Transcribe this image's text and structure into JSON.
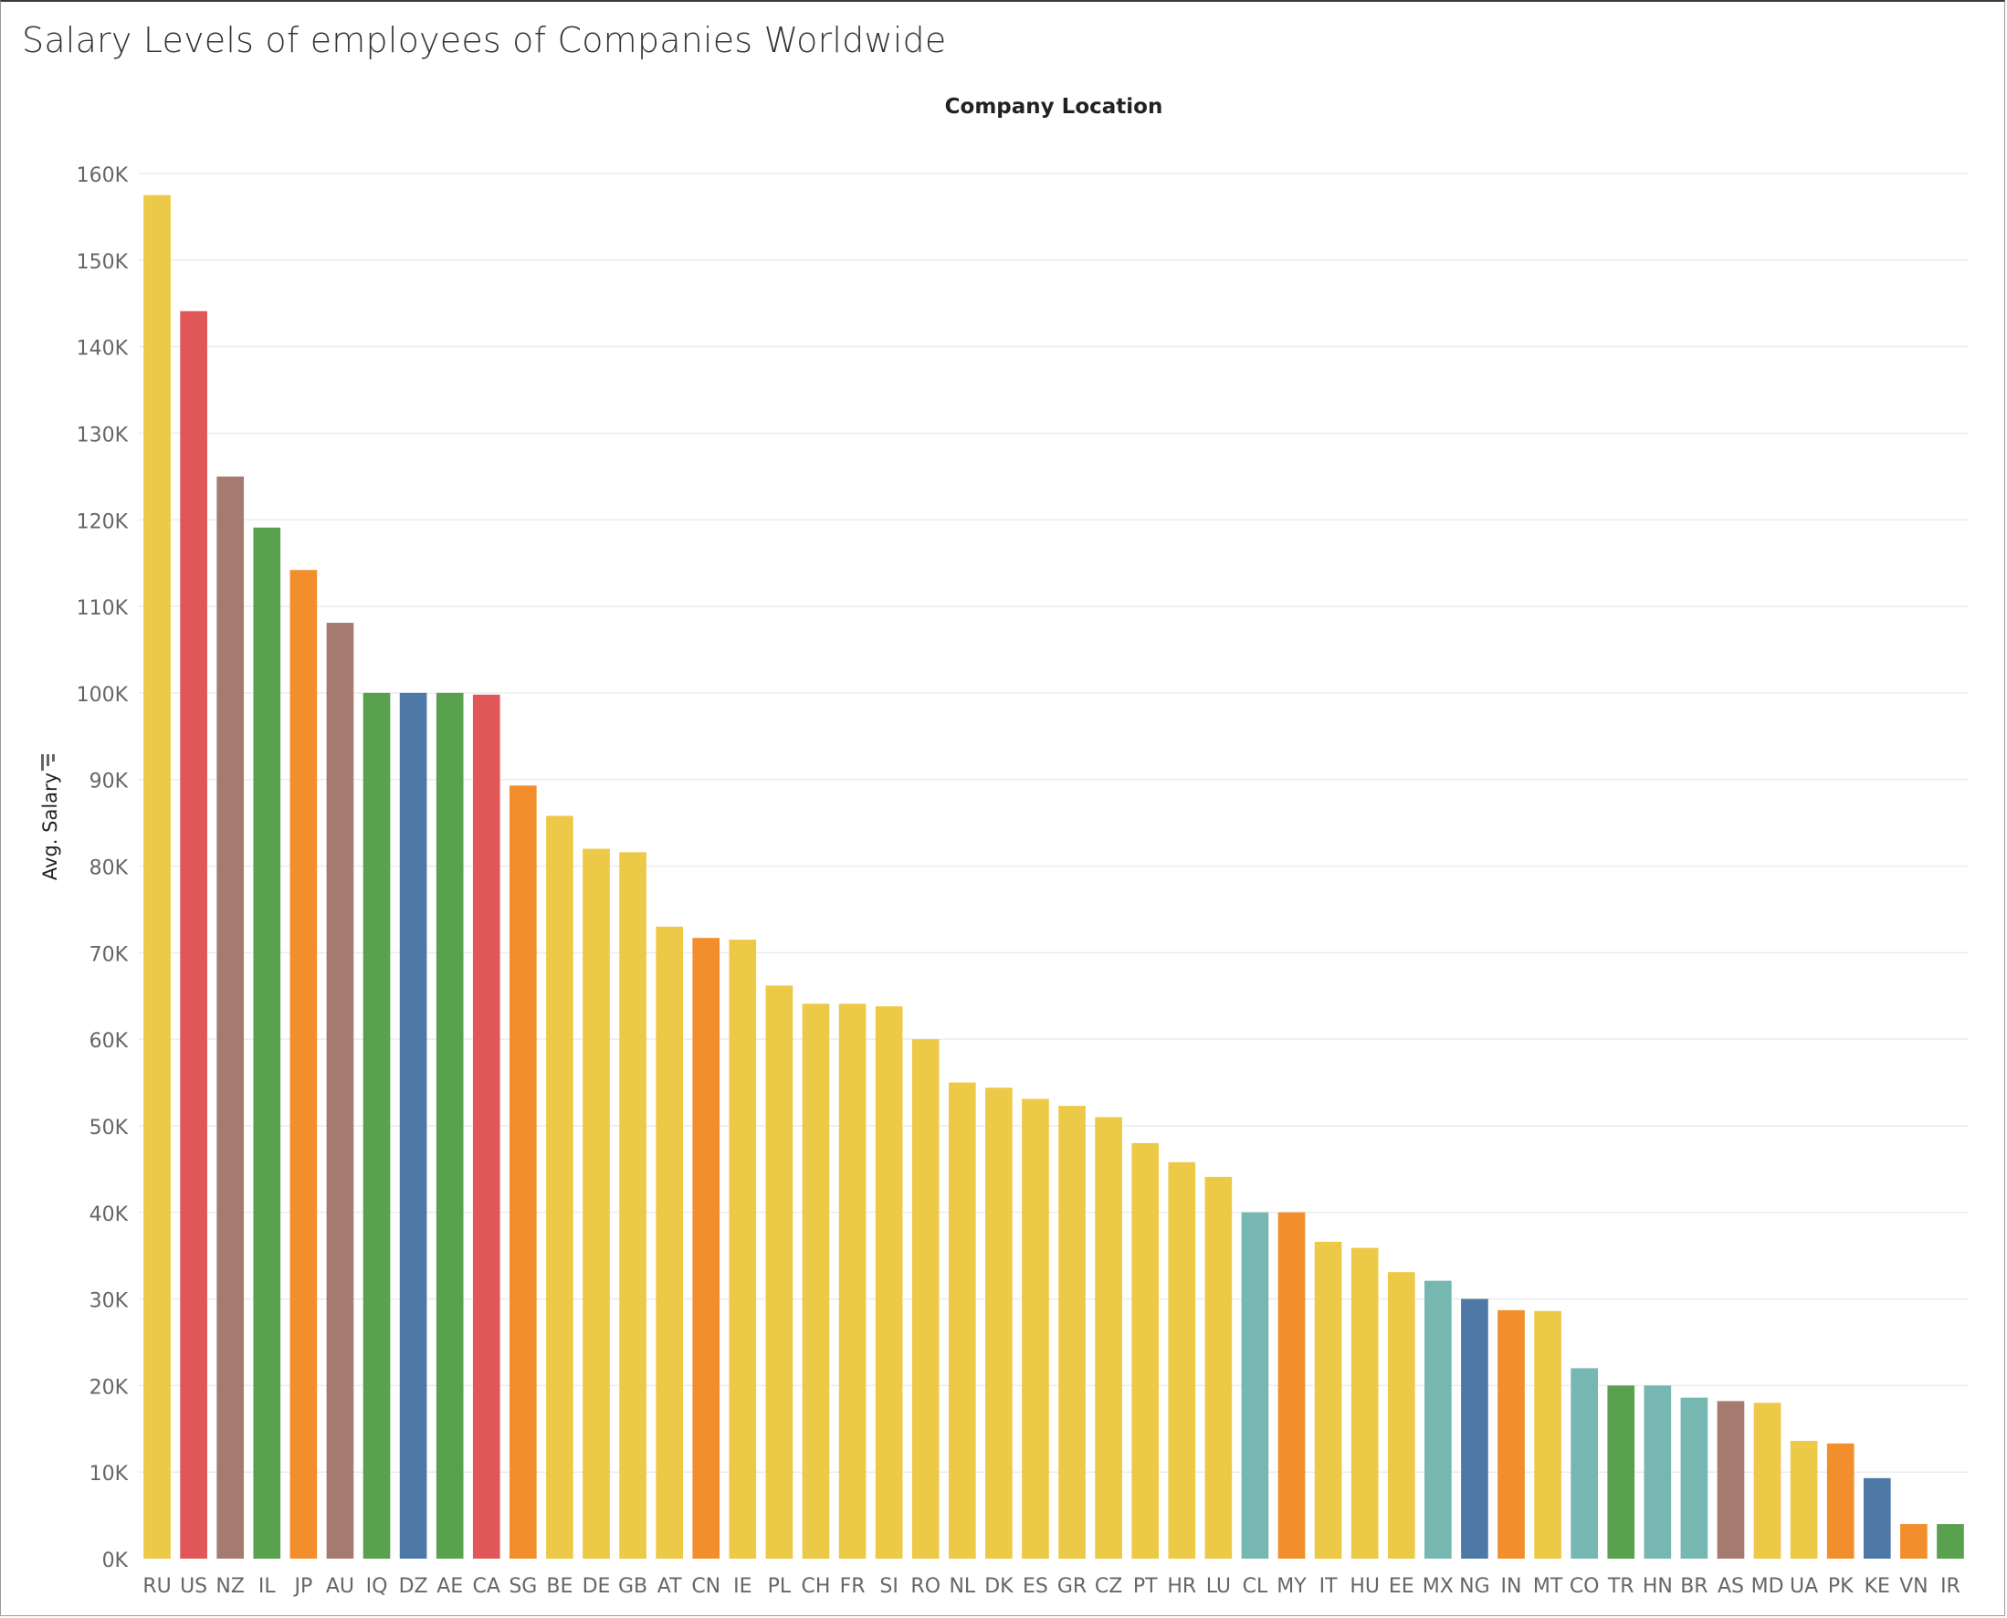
{
  "title": "Salary Levels of employees of Companies Worldwide",
  "colors": {
    "yellow": "#edc948",
    "red": "#e15759",
    "brown": "#a67b6f",
    "green": "#59a14f",
    "orange": "#f28e2b",
    "blue": "#4e79a7",
    "teal": "#76b7b2",
    "gridline": "#ececec",
    "tick_text": "#666666"
  },
  "chart_data": {
    "type": "bar",
    "title": "Salary Levels of employees of Companies Worldwide",
    "column_header": "Company Location",
    "xlabel": "",
    "ylabel": "Avg. Salary",
    "ylabel_icon": "sort-descending-icon",
    "ylim": [
      0,
      160000
    ],
    "yticks": [
      0,
      10000,
      20000,
      30000,
      40000,
      50000,
      60000,
      70000,
      80000,
      90000,
      100000,
      110000,
      120000,
      130000,
      140000,
      150000,
      160000
    ],
    "ytick_labels": [
      "0K",
      "10K",
      "20K",
      "30K",
      "40K",
      "50K",
      "60K",
      "70K",
      "80K",
      "90K",
      "100K",
      "110K",
      "120K",
      "130K",
      "140K",
      "150K",
      "160K"
    ],
    "grid": true,
    "legend": "none",
    "categories": [
      "RU",
      "US",
      "NZ",
      "IL",
      "JP",
      "AU",
      "IQ",
      "DZ",
      "AE",
      "CA",
      "SG",
      "BE",
      "DE",
      "GB",
      "AT",
      "CN",
      "IE",
      "PL",
      "CH",
      "FR",
      "SI",
      "RO",
      "NL",
      "DK",
      "ES",
      "GR",
      "CZ",
      "PT",
      "HR",
      "LU",
      "CL",
      "MY",
      "IT",
      "HU",
      "EE",
      "MX",
      "NG",
      "IN",
      "MT",
      "CO",
      "TR",
      "HN",
      "BR",
      "AS",
      "MD",
      "UA",
      "PK",
      "KE",
      "VN",
      "IR"
    ],
    "values": [
      157500,
      144100,
      125000,
      119100,
      114200,
      108100,
      100000,
      100000,
      100000,
      99800,
      89300,
      85800,
      82000,
      81600,
      73000,
      71700,
      71500,
      66200,
      64100,
      64100,
      63800,
      60000,
      55000,
      54400,
      53100,
      52300,
      51000,
      48000,
      45800,
      44100,
      40000,
      40000,
      36600,
      35900,
      33100,
      32100,
      30000,
      28700,
      28600,
      22000,
      20000,
      20000,
      18600,
      18200,
      18000,
      13600,
      13300,
      9300,
      4000,
      4000
    ],
    "bar_colors": [
      "yellow",
      "red",
      "brown",
      "green",
      "orange",
      "brown",
      "green",
      "blue",
      "green",
      "red",
      "orange",
      "yellow",
      "yellow",
      "yellow",
      "yellow",
      "orange",
      "yellow",
      "yellow",
      "yellow",
      "yellow",
      "yellow",
      "yellow",
      "yellow",
      "yellow",
      "yellow",
      "yellow",
      "yellow",
      "yellow",
      "yellow",
      "yellow",
      "teal",
      "orange",
      "yellow",
      "yellow",
      "yellow",
      "teal",
      "blue",
      "orange",
      "yellow",
      "teal",
      "green",
      "teal",
      "teal",
      "brown",
      "yellow",
      "yellow",
      "orange",
      "blue",
      "orange",
      "green"
    ]
  }
}
